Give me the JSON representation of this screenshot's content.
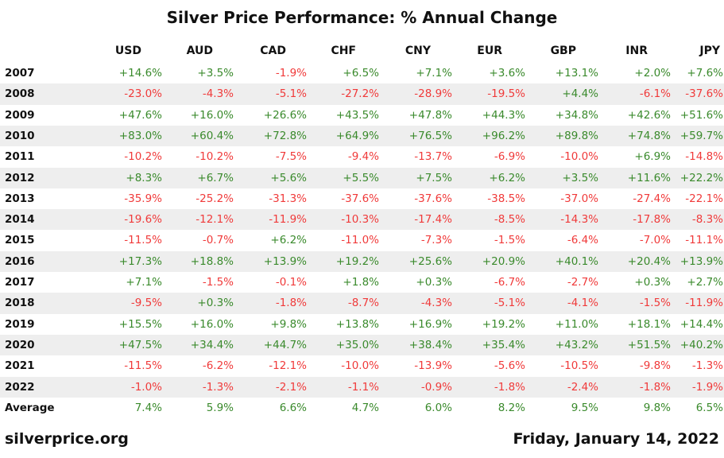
{
  "chart_data": {
    "type": "table",
    "title": "Silver Price Performance: % Annual Change",
    "columns": [
      "USD",
      "AUD",
      "CAD",
      "CHF",
      "CNY",
      "EUR",
      "GBP",
      "INR",
      "JPY"
    ],
    "rows": [
      {
        "label": "2007",
        "values": [
          "+14.6%",
          "+3.5%",
          "-1.9%",
          "+6.5%",
          "+7.1%",
          "+3.6%",
          "+13.1%",
          "+2.0%",
          "+7.6%"
        ]
      },
      {
        "label": "2008",
        "values": [
          "-23.0%",
          "-4.3%",
          "-5.1%",
          "-27.2%",
          "-28.9%",
          "-19.5%",
          "+4.4%",
          "-6.1%",
          "-37.6%"
        ]
      },
      {
        "label": "2009",
        "values": [
          "+47.6%",
          "+16.0%",
          "+26.6%",
          "+43.5%",
          "+47.8%",
          "+44.3%",
          "+34.8%",
          "+42.6%",
          "+51.6%"
        ]
      },
      {
        "label": "2010",
        "values": [
          "+83.0%",
          "+60.4%",
          "+72.8%",
          "+64.9%",
          "+76.5%",
          "+96.2%",
          "+89.8%",
          "+74.8%",
          "+59.7%"
        ]
      },
      {
        "label": "2011",
        "values": [
          "-10.2%",
          "-10.2%",
          "-7.5%",
          "-9.4%",
          "-13.7%",
          "-6.9%",
          "-10.0%",
          "+6.9%",
          "-14.8%"
        ]
      },
      {
        "label": "2012",
        "values": [
          "+8.3%",
          "+6.7%",
          "+5.6%",
          "+5.5%",
          "+7.5%",
          "+6.2%",
          "+3.5%",
          "+11.6%",
          "+22.2%"
        ]
      },
      {
        "label": "2013",
        "values": [
          "-35.9%",
          "-25.2%",
          "-31.3%",
          "-37.6%",
          "-37.6%",
          "-38.5%",
          "-37.0%",
          "-27.4%",
          "-22.1%"
        ]
      },
      {
        "label": "2014",
        "values": [
          "-19.6%",
          "-12.1%",
          "-11.9%",
          "-10.3%",
          "-17.4%",
          "-8.5%",
          "-14.3%",
          "-17.8%",
          "-8.3%"
        ]
      },
      {
        "label": "2015",
        "values": [
          "-11.5%",
          "-0.7%",
          "+6.2%",
          "-11.0%",
          "-7.3%",
          "-1.5%",
          "-6.4%",
          "-7.0%",
          "-11.1%"
        ]
      },
      {
        "label": "2016",
        "values": [
          "+17.3%",
          "+18.8%",
          "+13.9%",
          "+19.2%",
          "+25.6%",
          "+20.9%",
          "+40.1%",
          "+20.4%",
          "+13.9%"
        ]
      },
      {
        "label": "2017",
        "values": [
          "+7.1%",
          "-1.5%",
          "-0.1%",
          "+1.8%",
          "+0.3%",
          "-6.7%",
          "-2.7%",
          "+0.3%",
          "+2.7%"
        ]
      },
      {
        "label": "2018",
        "values": [
          "-9.5%",
          "+0.3%",
          "-1.8%",
          "-8.7%",
          "-4.3%",
          "-5.1%",
          "-4.1%",
          "-1.5%",
          "-11.9%"
        ]
      },
      {
        "label": "2019",
        "values": [
          "+15.5%",
          "+16.0%",
          "+9.8%",
          "+13.8%",
          "+16.9%",
          "+19.2%",
          "+11.0%",
          "+18.1%",
          "+14.4%"
        ]
      },
      {
        "label": "2020",
        "values": [
          "+47.5%",
          "+34.4%",
          "+44.7%",
          "+35.0%",
          "+38.4%",
          "+35.4%",
          "+43.2%",
          "+51.5%",
          "+40.2%"
        ]
      },
      {
        "label": "2021",
        "values": [
          "-11.5%",
          "-6.2%",
          "-12.1%",
          "-10.0%",
          "-13.9%",
          "-5.6%",
          "-10.5%",
          "-9.8%",
          "-1.3%"
        ]
      },
      {
        "label": "2022",
        "values": [
          "-1.0%",
          "-1.3%",
          "-2.1%",
          "-1.1%",
          "-0.9%",
          "-1.8%",
          "-2.4%",
          "-1.8%",
          "-1.9%"
        ]
      },
      {
        "label": "Average",
        "values": [
          "7.4%",
          "5.9%",
          "6.6%",
          "4.7%",
          "6.0%",
          "8.2%",
          "9.5%",
          "9.8%",
          "6.5%"
        ]
      }
    ],
    "colors": {
      "positive": "#3a8a2c",
      "negative": "#f03a3a",
      "stripe": "#eeeeee"
    }
  },
  "footer": {
    "site": "silverprice.org",
    "date": "Friday, January 14, 2022"
  }
}
